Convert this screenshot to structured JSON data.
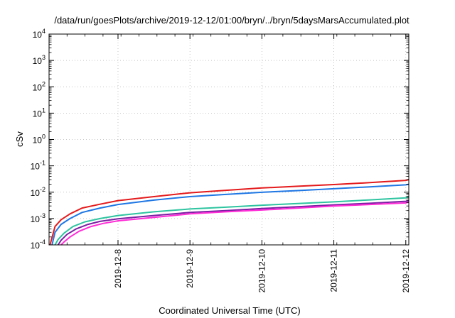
{
  "chart_data": {
    "type": "line",
    "title": "/data/run/goesPlots/archive/2019-12-12/01:00/bryn/../bryn/5daysMarsAccumulated.plot",
    "xlabel": "Coordinated Universal Time (UTC)",
    "ylabel": "cSv",
    "y_scale": "log",
    "ylim": [
      0.0001,
      10000
    ],
    "y_ticks": [
      {
        "value": 0.0001,
        "base": "10",
        "exp": "-4"
      },
      {
        "value": 0.001,
        "base": "10",
        "exp": "-3"
      },
      {
        "value": 0.01,
        "base": "10",
        "exp": "-2"
      },
      {
        "value": 0.1,
        "base": "10",
        "exp": "-1"
      },
      {
        "value": 1,
        "base": "10",
        "exp": "0"
      },
      {
        "value": 10,
        "base": "10",
        "exp": "1"
      },
      {
        "value": 100,
        "base": "10",
        "exp": "2"
      },
      {
        "value": 1000,
        "base": "10",
        "exp": "3"
      },
      {
        "value": 10000,
        "base": "10",
        "exp": "4"
      }
    ],
    "xlim": [
      "2019-12-07T01:00",
      "2019-12-12T01:00"
    ],
    "x_ticks": [
      "2019-12-8",
      "2019-12-9",
      "2019-12-10",
      "2019-12-11",
      "2019-12-12"
    ],
    "x_tick_dates": [
      "2019-12-08T00:00",
      "2019-12-09T00:00",
      "2019-12-10T00:00",
      "2019-12-11T00:00",
      "2019-12-12T00:00"
    ],
    "grid": true,
    "legend": "none",
    "series": [
      {
        "color": "#e41a1c",
        "x": [
          "2019-12-07T01:20",
          "2019-12-07T03:00",
          "2019-12-07T05:00",
          "2019-12-07T08:00",
          "2019-12-07T12:00",
          "2019-12-07T18:00",
          "2019-12-08T00:00",
          "2019-12-08T12:00",
          "2019-12-09T00:00",
          "2019-12-09T12:00",
          "2019-12-10T00:00",
          "2019-12-10T12:00",
          "2019-12-11T00:00",
          "2019-12-11T12:00",
          "2019-12-12T00:00",
          "2019-12-12T01:00"
        ],
        "y": [
          0.0001,
          0.0005,
          0.0009,
          0.0015,
          0.0025,
          0.0035,
          0.0048,
          0.0068,
          0.0095,
          0.0118,
          0.0145,
          0.0168,
          0.0195,
          0.023,
          0.028,
          0.03
        ]
      },
      {
        "color": "#1f77e4",
        "x": [
          "2019-12-07T02:00",
          "2019-12-07T03:00",
          "2019-12-07T05:00",
          "2019-12-07T08:00",
          "2019-12-07T12:00",
          "2019-12-07T18:00",
          "2019-12-08T00:00",
          "2019-12-08T12:00",
          "2019-12-09T00:00",
          "2019-12-09T12:00",
          "2019-12-10T00:00",
          "2019-12-10T12:00",
          "2019-12-11T00:00",
          "2019-12-11T12:00",
          "2019-12-12T00:00",
          "2019-12-12T01:00"
        ],
        "y": [
          0.0001,
          0.0003,
          0.0006,
          0.001,
          0.0017,
          0.0025,
          0.0034,
          0.005,
          0.0068,
          0.0082,
          0.0099,
          0.0115,
          0.0135,
          0.016,
          0.019,
          0.02
        ]
      },
      {
        "color": "#2ec4a0",
        "x": [
          "2019-12-07T03:00",
          "2019-12-07T04:00",
          "2019-12-07T06:00",
          "2019-12-07T09:00",
          "2019-12-07T13:00",
          "2019-12-07T18:00",
          "2019-12-08T00:00",
          "2019-12-08T12:00",
          "2019-12-09T00:00",
          "2019-12-09T12:00",
          "2019-12-10T00:00",
          "2019-12-10T12:00",
          "2019-12-11T00:00",
          "2019-12-11T12:00",
          "2019-12-12T00:00",
          "2019-12-12T01:00"
        ],
        "y": [
          0.0001,
          0.00016,
          0.00028,
          0.0005,
          0.00075,
          0.001,
          0.0013,
          0.0018,
          0.0023,
          0.0027,
          0.0032,
          0.0037,
          0.0043,
          0.0051,
          0.0061,
          0.0066
        ]
      },
      {
        "color": "#7b1fa2",
        "x": [
          "2019-12-07T04:00",
          "2019-12-07T05:00",
          "2019-12-07T07:00",
          "2019-12-07T10:00",
          "2019-12-07T14:00",
          "2019-12-07T18:00",
          "2019-12-08T00:00",
          "2019-12-08T12:00",
          "2019-12-09T00:00",
          "2019-12-09T12:00",
          "2019-12-10T00:00",
          "2019-12-10T12:00",
          "2019-12-11T00:00",
          "2019-12-11T12:00",
          "2019-12-12T00:00",
          "2019-12-12T01:00"
        ],
        "y": [
          0.0001,
          0.00015,
          0.00025,
          0.0004,
          0.0006,
          0.00078,
          0.00098,
          0.0013,
          0.0017,
          0.002,
          0.0024,
          0.0028,
          0.0033,
          0.0038,
          0.0045,
          0.0048
        ]
      },
      {
        "color": "#ff2bd6",
        "x": [
          "2019-12-07T05:00",
          "2019-12-07T06:00",
          "2019-12-07T08:00",
          "2019-12-07T11:00",
          "2019-12-07T15:00",
          "2019-12-07T19:00",
          "2019-12-08T00:00",
          "2019-12-08T12:00",
          "2019-12-09T00:00",
          "2019-12-09T12:00",
          "2019-12-10T00:00",
          "2019-12-10T12:00",
          "2019-12-11T00:00",
          "2019-12-11T12:00",
          "2019-12-12T00:00",
          "2019-12-12T01:00"
        ],
        "y": [
          0.0001,
          0.00013,
          0.0002,
          0.00033,
          0.0005,
          0.00065,
          0.00082,
          0.0011,
          0.0015,
          0.0018,
          0.0021,
          0.0025,
          0.003,
          0.0034,
          0.0039,
          0.0042
        ]
      }
    ]
  }
}
